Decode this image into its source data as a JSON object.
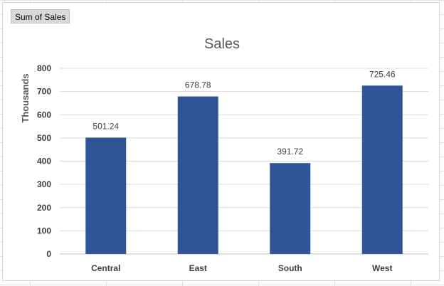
{
  "pivot_field_button": "Sum of Sales",
  "chart_data": {
    "type": "bar",
    "title": "Sales",
    "ylabel": "Thousands",
    "xlabel": "",
    "categories": [
      "Central",
      "East",
      "South",
      "West"
    ],
    "values": [
      501.24,
      678.78,
      391.72,
      725.46
    ],
    "data_labels": [
      "501.24",
      "678.78",
      "391.72",
      "725.46"
    ],
    "ylim": [
      0,
      800
    ],
    "yticks": [
      0,
      100,
      200,
      300,
      400,
      500,
      600,
      700,
      800
    ],
    "grid": true,
    "legend": "none",
    "bar_color": "#2f5597"
  }
}
